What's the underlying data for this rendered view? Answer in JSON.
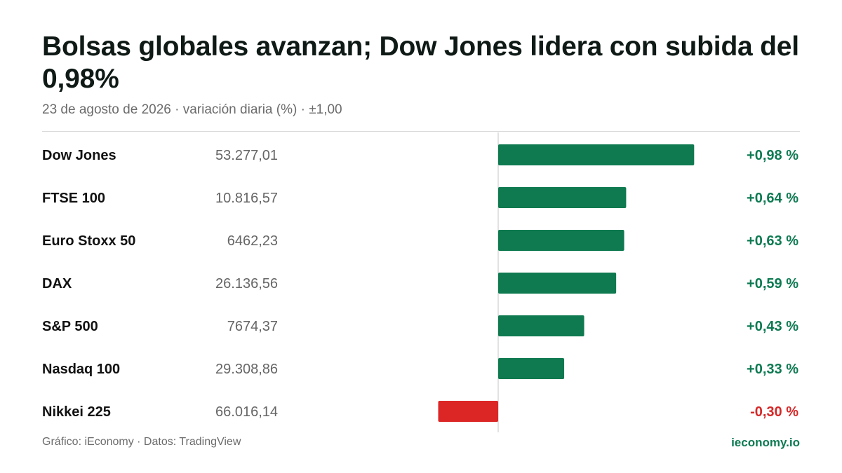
{
  "header": {
    "title": "Bolsas globales avanzan; Dow Jones lidera con subida del 0,98%",
    "subtitle": "23 de agosto de 2026 · variación diaria (%) · ±1,00"
  },
  "footer": {
    "credit": "Gráfico: iEconomy · Datos: TradingView",
    "brand": "ieconomy.io"
  },
  "colors": {
    "positive": "#0f7a50",
    "negative": "#dc2626",
    "positive_text": "#0d7a52",
    "negative_text": "#d62828",
    "zero_line": "#d9d9d9"
  },
  "chart_data": {
    "type": "bar",
    "orientation": "horizontal",
    "xlim": [
      -1.0,
      1.0
    ],
    "categories": [
      "Dow Jones",
      "FTSE 100",
      "Euro Stoxx 50",
      "DAX",
      "S&P 500",
      "Nasdaq 100",
      "Nikkei 225"
    ],
    "index_values": [
      "53.277,01",
      "10.816,57",
      "6462,23",
      "26.136,56",
      "7674,37",
      "29.308,86",
      "66.016,14"
    ],
    "values": [
      0.98,
      0.64,
      0.63,
      0.59,
      0.43,
      0.33,
      -0.3
    ],
    "value_labels": [
      "+0,98 %",
      "+0,64 %",
      "+0,63 %",
      "+0,59 %",
      "+0,43 %",
      "+0,33 %",
      "-0,30 %"
    ]
  }
}
